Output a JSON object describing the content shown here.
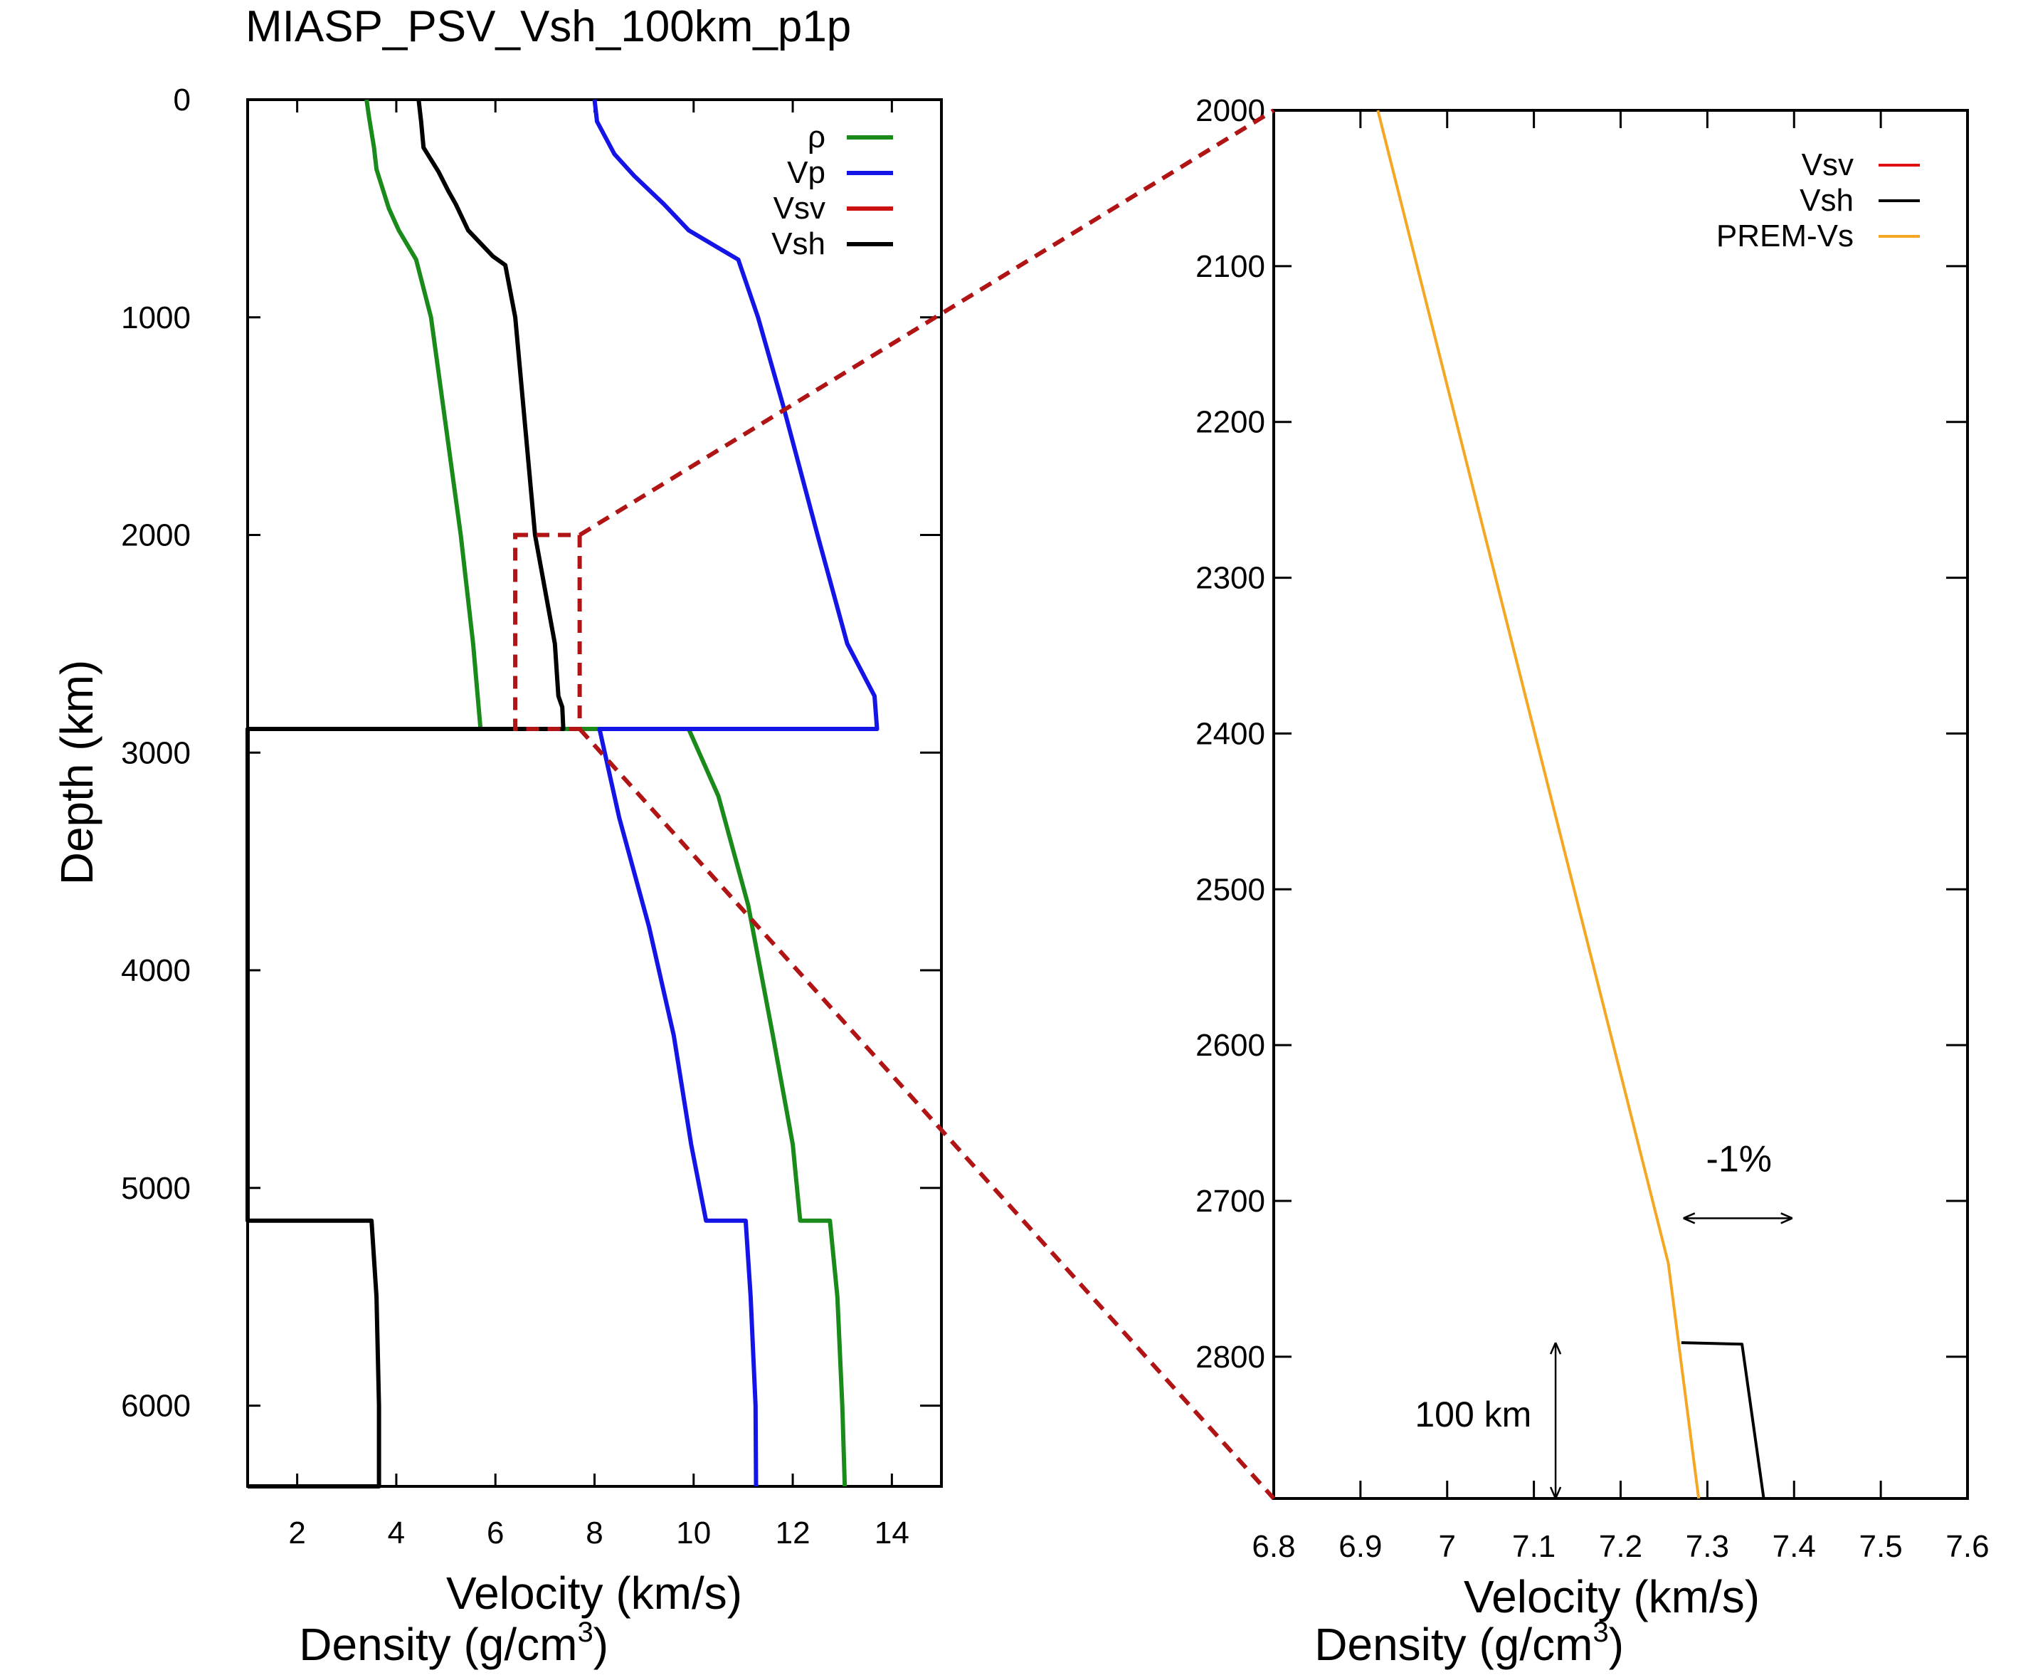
{
  "chart_data": [
    {
      "type": "line",
      "title": "MIASP_PSV_Vsh_100km_p1p",
      "xlabel_line1": "Velocity (km/s)",
      "xlabel_line2_base": "Density (g/cm",
      "xlabel_line2_sup": "3",
      "xlabel_line2_end": ")",
      "ylabel": "Depth (km)",
      "xlim": [
        1,
        15
      ],
      "ylim": [
        6371,
        0
      ],
      "xticks": [
        2,
        4,
        6,
        8,
        10,
        12,
        14
      ],
      "yticks": [
        0,
        1000,
        2000,
        3000,
        4000,
        5000,
        6000
      ],
      "legend_position": "top-right",
      "series": [
        {
          "name": "ρ",
          "color": "#1a8a1a",
          "points": [
            [
              3.4,
              0
            ],
            [
              3.45,
              80
            ],
            [
              3.55,
              220
            ],
            [
              3.6,
              320
            ],
            [
              3.85,
              500
            ],
            [
              4.05,
              600
            ],
            [
              4.4,
              735
            ],
            [
              4.7,
              1000
            ],
            [
              5.0,
              1500
            ],
            [
              5.3,
              2000
            ],
            [
              5.55,
              2500
            ],
            [
              5.7,
              2891
            ],
            [
              9.9,
              2891
            ],
            [
              10.5,
              3200
            ],
            [
              11.1,
              3700
            ],
            [
              11.6,
              4300
            ],
            [
              12.0,
              4800
            ],
            [
              12.15,
              5150
            ],
            [
              12.75,
              5150
            ],
            [
              12.9,
              5500
            ],
            [
              13.0,
              6000
            ],
            [
              13.05,
              6371
            ]
          ]
        },
        {
          "name": "Vp",
          "color": "#1414e6",
          "points": [
            [
              8.0,
              0
            ],
            [
              8.05,
              100
            ],
            [
              8.4,
              250
            ],
            [
              8.8,
              350
            ],
            [
              9.4,
              480
            ],
            [
              9.9,
              600
            ],
            [
              10.9,
              735
            ],
            [
              11.3,
              1000
            ],
            [
              11.8,
              1400
            ],
            [
              12.5,
              2000
            ],
            [
              13.1,
              2500
            ],
            [
              13.65,
              2740
            ],
            [
              13.7,
              2891
            ],
            [
              8.1,
              2891
            ],
            [
              8.5,
              3300
            ],
            [
              9.1,
              3800
            ],
            [
              9.6,
              4300
            ],
            [
              9.95,
              4800
            ],
            [
              10.25,
              5150
            ],
            [
              11.05,
              5150
            ],
            [
              11.15,
              5500
            ],
            [
              11.25,
              6000
            ],
            [
              11.26,
              6371
            ]
          ]
        },
        {
          "name": "Vsv",
          "color": "#cc1111",
          "points": []
        },
        {
          "name": "Vsh",
          "color": "#000000",
          "points": [
            [
              4.45,
              0
            ],
            [
              4.5,
              100
            ],
            [
              4.55,
              220
            ],
            [
              4.85,
              330
            ],
            [
              5.05,
              420
            ],
            [
              5.2,
              480
            ],
            [
              5.45,
              600
            ],
            [
              5.95,
              720
            ],
            [
              6.2,
              760
            ],
            [
              6.4,
              1000
            ],
            [
              6.6,
              1500
            ],
            [
              6.8,
              2000
            ],
            [
              7.2,
              2500
            ],
            [
              7.27,
              2740
            ],
            [
              7.35,
              2791
            ],
            [
              7.37,
              2891
            ],
            [
              1.0,
              2891
            ],
            [
              1.0,
              5150
            ],
            [
              3.5,
              5150
            ],
            [
              3.6,
              5500
            ],
            [
              3.65,
              6000
            ],
            [
              3.65,
              6371
            ],
            [
              1.0,
              6371
            ]
          ]
        }
      ],
      "zoom_box": {
        "x": [
          6.4,
          7.7
        ],
        "y": [
          2000,
          2891
        ],
        "color": "#b01414"
      }
    },
    {
      "type": "line",
      "title": "",
      "xlabel_line1": "Velocity (km/s)",
      "xlabel_line2_base": "Density (g/cm",
      "xlabel_line2_sup": "3",
      "xlabel_line2_end": ")",
      "ylabel": "",
      "xlim": [
        6.8,
        7.6
      ],
      "ylim": [
        2891,
        2000
      ],
      "xticks": [
        6.8,
        6.9,
        7,
        7.1,
        7.2,
        7.3,
        7.4,
        7.5,
        7.6
      ],
      "yticks": [
        2000,
        2100,
        2200,
        2300,
        2400,
        2500,
        2600,
        2700,
        2800
      ],
      "legend_position": "top-right",
      "series": [
        {
          "name": "Vsv",
          "color": "#dd1111",
          "points": []
        },
        {
          "name": "Vsh",
          "color": "#000000",
          "points": [
            [
              7.27,
              2791
            ],
            [
              7.34,
              2792
            ],
            [
              7.365,
              2891
            ]
          ]
        },
        {
          "name": "PREM-Vs",
          "color": "#f5a623",
          "points": [
            [
              6.92,
              2000
            ],
            [
              7.255,
              2740
            ],
            [
              7.29,
              2891
            ]
          ]
        }
      ],
      "annotations": [
        {
          "text": "-1%",
          "x": 7.32,
          "y": 2670
        },
        {
          "text": "100 km",
          "x": 7.03,
          "y": 2838
        }
      ]
    }
  ]
}
